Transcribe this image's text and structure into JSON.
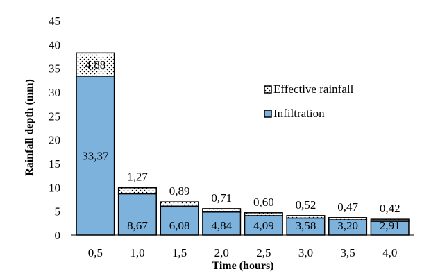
{
  "chart_data": {
    "type": "bar",
    "stacked": true,
    "categories": [
      "0,5",
      "1,0",
      "1,5",
      "2,0",
      "2,5",
      "3,0",
      "3,5",
      "4,0"
    ],
    "series": [
      {
        "name": "Infiltration",
        "values": [
          33.37,
          8.67,
          6.08,
          4.84,
          4.09,
          3.58,
          3.2,
          2.91
        ],
        "labels": [
          "33,37",
          "8,67",
          "6,08",
          "4,84",
          "4,09",
          "3,58",
          "3,20",
          "2,91"
        ],
        "color": "#7cb2dc"
      },
      {
        "name": "Effective rainfall",
        "values": [
          4.88,
          1.27,
          0.89,
          0.71,
          0.6,
          0.52,
          0.47,
          0.42
        ],
        "labels": [
          "4,88",
          "1,27",
          "0,89",
          "0,71",
          "0,60",
          "0,52",
          "0,47",
          "0,42"
        ],
        "color": "#ffffff",
        "pattern": "dotted"
      }
    ],
    "xlabel": "Time (hours)",
    "ylabel": "Rainfall depth (mm)",
    "ylim": [
      0,
      45
    ],
    "yticks": [
      "0",
      "5",
      "10",
      "15",
      "20",
      "25",
      "30",
      "35",
      "40",
      "45"
    ],
    "grid": false,
    "legend_position": "right"
  }
}
